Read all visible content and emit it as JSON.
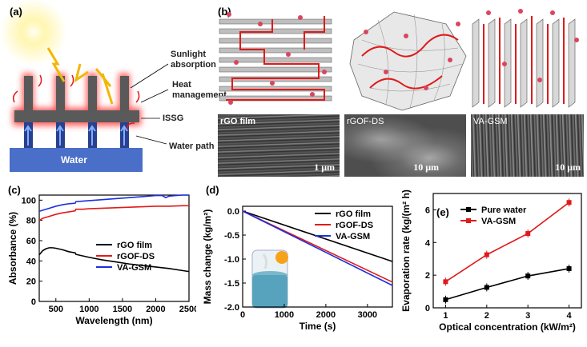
{
  "panel_a": {
    "label": "(a)",
    "labels": [
      "Sunlight absorption",
      "Heat management",
      "ISSG",
      "Water path",
      "Water"
    ]
  },
  "panel_b": {
    "label": "(b)",
    "sem": [
      {
        "name": "rGO film",
        "scale": "1 μm"
      },
      {
        "name": "rGOF-DS",
        "scale": "10 μm"
      },
      {
        "name": "VA-GSM",
        "scale": "10 μm"
      }
    ]
  },
  "chart_data": [
    {
      "id": "c",
      "type": "line",
      "label": "(c)",
      "xlabel": "Wavelength (nm)",
      "ylabel": "Absorbance (%)",
      "xlim": [
        250,
        2500
      ],
      "ylim": [
        0,
        105
      ],
      "xticks": [
        500,
        1000,
        1500,
        2000,
        2500
      ],
      "yticks": [
        0,
        20,
        40,
        60,
        80,
        100
      ],
      "legend_position": "middle-right",
      "series": [
        {
          "name": "rGO film",
          "color": "#000000",
          "x": [
            250,
            300,
            350,
            400,
            450,
            500,
            600,
            700,
            790,
            800,
            900,
            1000,
            1200,
            1400,
            1600,
            1800,
            2000,
            2200,
            2400,
            2500
          ],
          "y": [
            46,
            50,
            52,
            53,
            53,
            52.5,
            51,
            49,
            48,
            46.5,
            45,
            43.5,
            41,
            39,
            37,
            35.5,
            34,
            32.5,
            30.5,
            29.5
          ]
        },
        {
          "name": "rGOF-DS",
          "color": "#e01a1a",
          "x": [
            250,
            300,
            400,
            500,
            600,
            700,
            790,
            800,
            900,
            1000,
            1200,
            1400,
            1600,
            1800,
            2000,
            2200,
            2400,
            2500
          ],
          "y": [
            80,
            82,
            84,
            86,
            87.5,
            88.5,
            89.5,
            91,
            91,
            91.5,
            92,
            92.5,
            93,
            93.5,
            94,
            94,
            94.5,
            94.5
          ]
        },
        {
          "name": "VA-GSM",
          "color": "#1c2ee0",
          "x": [
            250,
            300,
            400,
            500,
            600,
            700,
            790,
            800,
            900,
            1000,
            1200,
            1400,
            1600,
            1800,
            2000,
            2100,
            2150,
            2200,
            2300,
            2400,
            2500
          ],
          "y": [
            89,
            90,
            92,
            94,
            95.5,
            96.5,
            97,
            98.5,
            99,
            99.5,
            100.5,
            101.5,
            102.5,
            103.5,
            104.5,
            104.5,
            102.5,
            104,
            104.5,
            105,
            105
          ]
        }
      ]
    },
    {
      "id": "d",
      "type": "line",
      "label": "(d)",
      "xlabel": "Time (s)",
      "ylabel": "Mass change (kg/m²)",
      "xlim": [
        0,
        3600
      ],
      "ylim": [
        -2.0,
        0.1
      ],
      "xticks": [
        0,
        1000,
        2000,
        3000
      ],
      "yticks": [
        0.0,
        -0.5,
        -1.0,
        -1.5,
        -2.0
      ],
      "ytick_labels": [
        "0.0",
        "-0.5",
        "-1.0",
        "-1.5",
        "-2.0"
      ],
      "legend_position": "top-right",
      "series": [
        {
          "name": "rGO film",
          "color": "#000000",
          "x": [
            0,
            3600
          ],
          "y": [
            0,
            -1.05
          ]
        },
        {
          "name": "rGOF-DS",
          "color": "#e01a1a",
          "x": [
            0,
            3600
          ],
          "y": [
            0,
            -1.48
          ]
        },
        {
          "name": "VA-GSM",
          "color": "#1c2ee0",
          "x": [
            0,
            3600
          ],
          "y": [
            0,
            -1.55
          ]
        }
      ]
    },
    {
      "id": "e",
      "type": "line",
      "label": "(e)",
      "xlabel": "Optical concentration (kW/m²)",
      "ylabel": "Evaporation rate (kg/(m² h)",
      "xlim": [
        0.7,
        4.3
      ],
      "ylim": [
        0,
        7
      ],
      "xticks": [
        1,
        2,
        3,
        4
      ],
      "yticks": [
        0,
        2,
        4,
        6
      ],
      "legend_position": "top-left",
      "series": [
        {
          "name": "Pure water",
          "color": "#000000",
          "x": [
            1,
            2,
            3,
            4
          ],
          "y": [
            0.5,
            1.25,
            1.95,
            2.4
          ]
        },
        {
          "name": "VA-GSM",
          "color": "#e01a1a",
          "x": [
            1,
            2,
            3,
            4
          ],
          "y": [
            1.6,
            3.25,
            4.55,
            6.45
          ]
        }
      ]
    }
  ]
}
